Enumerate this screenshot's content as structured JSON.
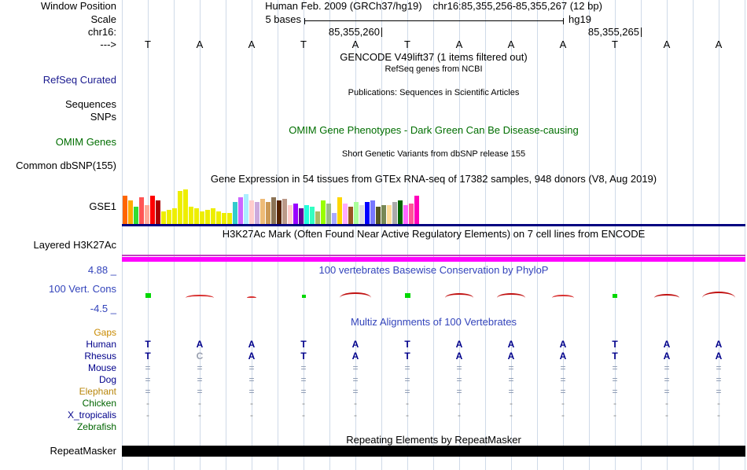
{
  "header": {
    "assembly": "Human Feb. 2009 (GRCh37/hg19)",
    "position": "chr16:85,355,256-85,355,267 (12 bp)",
    "scale_value": "5 bases",
    "assembly_short": "hg19",
    "coord_ticks": [
      {
        "label": "85,355,260",
        "boundary_col": 5
      },
      {
        "label": "85,355,265",
        "boundary_col": 10
      }
    ]
  },
  "labels": {
    "window_position": "Window Position",
    "scale": "Scale",
    "chrom": "chr16:",
    "strand": "--->",
    "refseq_curated": "RefSeq Curated",
    "sequences": "Sequences",
    "snps": "SNPs",
    "omim_genes": "OMIM Genes",
    "dbsnp": "Common dbSNP(155)",
    "gtex": "GSE1",
    "h3k27ac": "Layered H3K27Ac",
    "phylop": "100 Vert. Cons",
    "repeatmasker": "RepeatMasker"
  },
  "tracks": {
    "gencode_title": "GENCODE V49lift37 (1 items filtered out)",
    "refseq_title": "RefSeq genes from NCBI",
    "publications_title": "Publications: Sequences in Scientific Articles",
    "omim_title": "OMIM Gene Phenotypes - Dark Green Can Be Disease-causing",
    "dbsnp_title": "Short Genetic Variants from dbSNP release 155",
    "gtex_title": "Gene Expression in 54 tissues from GTEx RNA-seq of 17382 samples, 948 donors (V8, Aug 2019)",
    "h3k27ac_title": "H3K27Ac Mark (Often Found Near Active Regulatory Elements) on 7 cell lines from ENCODE",
    "phylop_title": "100 vertebrates Basewise Conservation by PhyloP",
    "phylop_max": "4.88 _",
    "phylop_min": "-4.5 _",
    "multiz_title": "Multiz Alignments of 100 Vertebrates",
    "repeatmasker_title": "Repeating Elements by RepeatMasker"
  },
  "sequence": {
    "bases": [
      "T",
      "A",
      "A",
      "T",
      "A",
      "T",
      "A",
      "A",
      "A",
      "T",
      "A",
      "A"
    ]
  },
  "colors": {
    "header_blue": "#3344BB",
    "omim_green": "#006E00",
    "refseq_navy": "#1A1A8F",
    "gaps_orange": "#C88A00",
    "gtex_baseline_navy": "#000080",
    "h3k27ac_magenta": "#FF00FF",
    "repeat_black": "#000000",
    "gridline": "#CFDAE8"
  },
  "chart_data": [
    {
      "type": "bar",
      "title": "Gene Expression in 54 tissues from GTEx RNA-seq of 17382 samples, 948 donors (V8, Aug 2019)",
      "note": "54 per-tissue expression bars (GTEx tissue color palette); heights estimated in px, no numeric axis shown",
      "values": [
        36,
        30,
        22,
        34,
        24,
        36,
        30,
        16,
        18,
        20,
        42,
        44,
        22,
        20,
        16,
        18,
        20,
        16,
        14,
        14,
        28,
        34,
        38,
        30,
        28,
        32,
        28,
        34,
        30,
        32,
        24,
        26,
        20,
        24,
        22,
        16,
        30,
        26,
        14,
        34,
        26,
        22,
        28,
        24,
        28,
        30,
        22,
        24,
        24,
        28,
        30,
        24,
        26,
        36
      ],
      "colors": [
        "#FF6600",
        "#FFAA00",
        "#33DD33",
        "#FF5555",
        "#FFAA99",
        "#FF0000",
        "#AA0000",
        "#EEEE00",
        "#EEEE00",
        "#EEEE00",
        "#EEEE00",
        "#EEEE00",
        "#EEEE00",
        "#EEEE00",
        "#EEEE00",
        "#EEEE00",
        "#EEEE00",
        "#EEEE00",
        "#EEEE00",
        "#EEEE00",
        "#33CCCC",
        "#CC66FF",
        "#AAEEFF",
        "#FFCCCC",
        "#CCAADD",
        "#EEBB77",
        "#CC9955",
        "#8B7355",
        "#552200",
        "#BB9988",
        "#FFCCCC",
        "#9900FF",
        "#660099",
        "#22FFDD",
        "#33FFC2",
        "#AABB66",
        "#99FF00",
        "#99BB88",
        "#AAAAFF",
        "#FFD700",
        "#FFAAFF",
        "#995522",
        "#AAFF99",
        "#DDDDDD",
        "#0000FF",
        "#7777FF",
        "#555522",
        "#778855",
        "#FFDD99",
        "#AAAAAA",
        "#006600",
        "#FF66FF",
        "#FF5599",
        "#FF00BB"
      ]
    },
    {
      "type": "line",
      "title": "100 vertebrates Basewise Conservation by PhyloP",
      "ylim": [
        -4.5,
        4.88
      ],
      "note": "per-base conservation marks: green ticks (positive) and red smoothed arcs (negative)",
      "marks": [
        {
          "col": 1,
          "kind": "tick",
          "color": "#00D800",
          "width": 7,
          "height": 6
        },
        {
          "col": 2,
          "kind": "arc",
          "color": "#D83030",
          "width": 36,
          "height": 4
        },
        {
          "col": 3,
          "kind": "arc",
          "color": "#D83030",
          "width": 12,
          "height": 2
        },
        {
          "col": 4,
          "kind": "tick",
          "color": "#00D800",
          "width": 5,
          "height": 4
        },
        {
          "col": 5,
          "kind": "arc",
          "color": "#C01010",
          "width": 40,
          "height": 7
        },
        {
          "col": 6,
          "kind": "tick",
          "color": "#00D800",
          "width": 7,
          "height": 6
        },
        {
          "col": 7,
          "kind": "arc",
          "color": "#C01010",
          "width": 36,
          "height": 6
        },
        {
          "col": 8,
          "kind": "arc",
          "color": "#C01010",
          "width": 36,
          "height": 6
        },
        {
          "col": 9,
          "kind": "arc",
          "color": "#D83030",
          "width": 28,
          "height": 4
        },
        {
          "col": 10,
          "kind": "tick",
          "color": "#00D800",
          "width": 6,
          "height": 5
        },
        {
          "col": 11,
          "kind": "arc",
          "color": "#C01010",
          "width": 32,
          "height": 5
        },
        {
          "col": 12,
          "kind": "arc",
          "color": "#C01010",
          "width": 42,
          "height": 8
        }
      ]
    }
  ],
  "multiz": {
    "rows": [
      {
        "name": "Gaps",
        "label_color": "#C88A00",
        "cell_color": "#888888",
        "cells": [
          "",
          "",
          "",
          "",
          "",
          "",
          "",
          "",
          "",
          "",
          "",
          ""
        ]
      },
      {
        "name": "Human",
        "label_color": "#00008B",
        "cell_color": "#00008B",
        "bold": true,
        "cells": [
          "T",
          "A",
          "A",
          "T",
          "A",
          "T",
          "A",
          "A",
          "A",
          "T",
          "A",
          "A"
        ]
      },
      {
        "name": "Rhesus",
        "label_color": "#00008B",
        "cell_color": "#00008B",
        "bold": true,
        "cells": [
          "T",
          "C",
          "A",
          "T",
          "A",
          "T",
          "A",
          "A",
          "A",
          "T",
          "A",
          "A"
        ],
        "cell_colors": [
          null,
          "#9AA0B0",
          null,
          null,
          null,
          null,
          null,
          null,
          null,
          null,
          null,
          null
        ]
      },
      {
        "name": "Mouse",
        "label_color": "#00008B",
        "cell_color": "#8593AD",
        "cells": [
          "=",
          "=",
          "=",
          "=",
          "=",
          "=",
          "=",
          "=",
          "=",
          "=",
          "=",
          "="
        ]
      },
      {
        "name": "Dog",
        "label_color": "#00008B",
        "cell_color": "#8593AD",
        "cells": [
          "=",
          "=",
          "=",
          "=",
          "=",
          "=",
          "=",
          "=",
          "=",
          "=",
          "=",
          "="
        ]
      },
      {
        "name": "Elephant",
        "label_color": "#B8860B",
        "cell_color": "#8593AD",
        "cells": [
          "=",
          "=",
          "=",
          "=",
          "=",
          "=",
          "=",
          "=",
          "=",
          "=",
          "=",
          "="
        ]
      },
      {
        "name": "Chicken",
        "label_color": "#006400",
        "cell_color": "#8A8A8A",
        "cells": [
          "-",
          "-",
          "-",
          "-",
          "-",
          "-",
          "-",
          "-",
          "-",
          "-",
          "-",
          "-"
        ]
      },
      {
        "name": "X_tropicalis",
        "label_color": "#00008B",
        "cell_color": "#8A8A8A",
        "cells": [
          "-",
          "-",
          "-",
          "-",
          "-",
          "-",
          "-",
          "-",
          "-",
          "-",
          "-",
          "-"
        ]
      },
      {
        "name": "Zebrafish",
        "label_color": "#006400",
        "cell_color": "#8A8A8A",
        "cells": [
          "",
          "",
          "",
          "",
          "",
          "",
          "",
          "",
          "",
          "",
          "",
          ""
        ]
      }
    ]
  }
}
